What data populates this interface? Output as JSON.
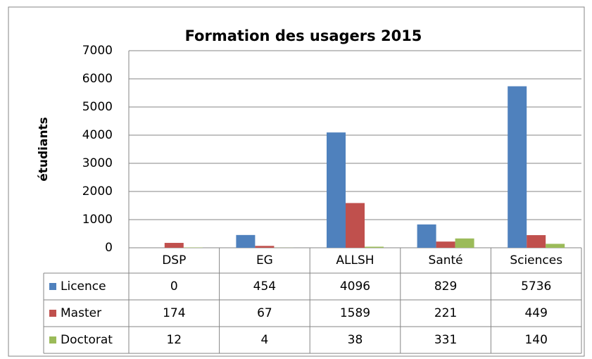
{
  "chart_data": {
    "type": "bar",
    "title": "Formation des usagers 2015",
    "y_label": "étudiants",
    "categories": [
      "DSP",
      "EG",
      "ALLSH",
      "Santé",
      "Sciences"
    ],
    "series": [
      {
        "name": "Licence",
        "color": "#4f81bd",
        "values": [
          0,
          454,
          4096,
          829,
          5736
        ]
      },
      {
        "name": "Master",
        "color": "#c0504d",
        "values": [
          174,
          67,
          1589,
          221,
          449
        ]
      },
      {
        "name": "Doctorat",
        "color": "#9bbb59",
        "values": [
          12,
          4,
          38,
          331,
          140
        ]
      }
    ],
    "ylim": [
      0,
      7000
    ],
    "yticks": [
      0,
      1000,
      2000,
      3000,
      4000,
      5000,
      6000,
      7000
    ],
    "grid": true
  }
}
